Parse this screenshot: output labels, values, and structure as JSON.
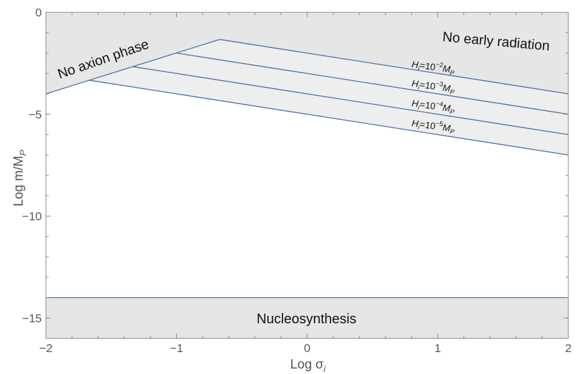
{
  "chart_data": {
    "type": "line",
    "title": "",
    "xlabel": "Log σ",
    "xlabel_subscript": "i",
    "ylabel": "Log m/M",
    "ylabel_subscript": "P",
    "xlim": [
      -2,
      2
    ],
    "ylim": [
      -16,
      0
    ],
    "x_ticks": [
      -2,
      -1,
      0,
      1,
      2
    ],
    "x_tick_labels": [
      "−2",
      "−1",
      "0",
      "1",
      "2"
    ],
    "y_ticks": [
      0,
      -5,
      -10,
      -15
    ],
    "y_tick_labels": [
      "0",
      "−5",
      "−10",
      "−15"
    ],
    "grid": false,
    "legend": "none",
    "colors": {
      "line": "#4a6fa5",
      "excluded_fill": "#e6e6e6",
      "band_fill": "#eeeeee",
      "axis": "#888888"
    },
    "series": [
      {
        "x": [
          -2,
          -0.67
        ],
        "y": [
          -4.0,
          -1.33
        ]
      },
      {
        "x": [
          -0.67,
          2
        ],
        "y": [
          -1.33,
          -4.0
        ]
      },
      {
        "x": [
          -1.0,
          2
        ],
        "y": [
          -2.0,
          -5.0
        ]
      },
      {
        "x": [
          -1.33,
          2
        ],
        "y": [
          -2.67,
          -6.0
        ]
      },
      {
        "x": [
          -1.67,
          2
        ],
        "y": [
          -3.33,
          -7.0
        ]
      },
      {
        "x": [
          -2,
          2
        ],
        "y": [
          -14.0,
          -14.0
        ]
      }
    ],
    "regions": [
      {
        "label": "No axion phase"
      },
      {
        "label": "No early radiation"
      },
      {
        "label": "Nucleosynthesis"
      }
    ],
    "annotations": [
      {
        "base": "H",
        "sub": "i",
        "mid": "=10",
        "sup": "−2",
        "base2": "M",
        "sub2": "P"
      },
      {
        "base": "H",
        "sub": "i",
        "mid": "=10",
        "sup": "−3",
        "base2": "M",
        "sub2": "P"
      },
      {
        "base": "H",
        "sub": "i",
        "mid": "=10",
        "sup": "−4",
        "base2": "M",
        "sub2": "P"
      },
      {
        "base": "H",
        "sub": "i",
        "mid": "=10",
        "sup": "−5",
        "base2": "M",
        "sub2": "P"
      }
    ]
  }
}
